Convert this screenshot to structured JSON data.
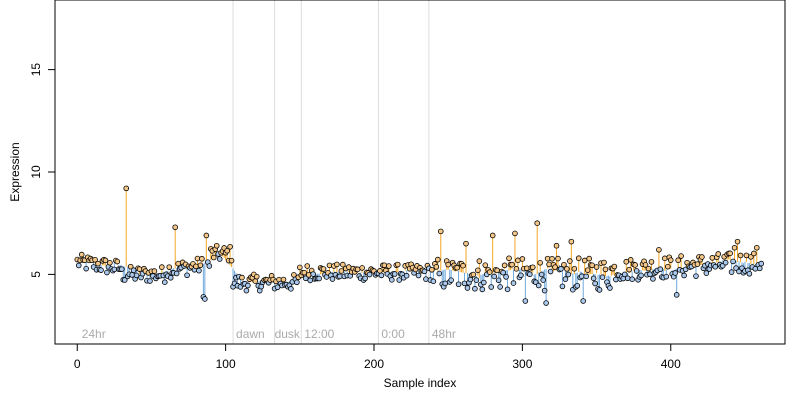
{
  "chart_data": {
    "type": "scatter",
    "xlabel": "Sample index",
    "ylabel": "Expression",
    "xlim": [
      -15,
      477
    ],
    "ylim": [
      1.6,
      18.4
    ],
    "x_ticks": [
      0,
      100,
      200,
      300,
      400
    ],
    "y_ticks": [
      5,
      10,
      15
    ],
    "grid": false,
    "phase_markers": [
      {
        "x": 105,
        "label": ""
      },
      {
        "x": 133,
        "label": ""
      },
      {
        "x": 151,
        "label": ""
      },
      {
        "x": 203,
        "label": ""
      },
      {
        "x": 237,
        "label": ""
      }
    ],
    "phase_labels": [
      {
        "x": 3,
        "label": "24hr"
      },
      {
        "x": 107,
        "label": "dawn"
      },
      {
        "x": 133,
        "label": "dusk"
      },
      {
        "x": 153,
        "label": "12:00"
      },
      {
        "x": 205,
        "label": "0:00"
      },
      {
        "x": 239,
        "label": "48hr"
      }
    ],
    "spikes": [
      {
        "x": 33,
        "y": 9.2
      },
      {
        "x": 66,
        "y": 7.3
      },
      {
        "x": 87,
        "y": 6.9
      },
      {
        "x": 245,
        "y": 7.1
      },
      {
        "x": 262,
        "y": 6.5
      },
      {
        "x": 280,
        "y": 6.9
      },
      {
        "x": 295,
        "y": 7.0
      },
      {
        "x": 310,
        "y": 7.5
      },
      {
        "x": 323,
        "y": 6.4
      },
      {
        "x": 333,
        "y": 6.6
      },
      {
        "x": 392,
        "y": 6.2
      },
      {
        "x": 443,
        "y": 6.3
      },
      {
        "x": 445,
        "y": 6.6
      },
      {
        "x": 458,
        "y": 6.3
      }
    ],
    "dips": [
      {
        "x": 85,
        "y": 3.9
      },
      {
        "x": 86,
        "y": 3.8
      },
      {
        "x": 302,
        "y": 3.7
      },
      {
        "x": 316,
        "y": 3.6
      },
      {
        "x": 341,
        "y": 3.7
      },
      {
        "x": 404,
        "y": 4.0
      }
    ],
    "colors": {
      "above": "#f5a623",
      "below": "#6fa8dc",
      "marker_outline": "#000000",
      "marker_fill_above": "#f5c88a",
      "marker_fill_below": "#a9c8ec",
      "phase_line": "#dddddd",
      "phase_label": "#aaaaaa"
    }
  }
}
